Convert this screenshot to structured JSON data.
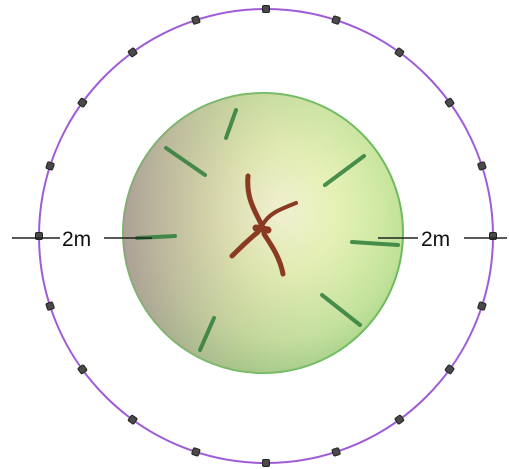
{
  "diagram": {
    "left_label": "2m",
    "right_label": "2m",
    "colors": {
      "ring": "#a05bd6",
      "stake": "#3a3a3a",
      "crown_light": "#eef7c0",
      "crown_mid": "#c6e79a",
      "crown_edge": "#5fae55",
      "crown_shadow": "#b59aa0",
      "branch_line": "#2f7d3a",
      "trunk": "#8b3a22"
    },
    "stake_count": 20
  }
}
